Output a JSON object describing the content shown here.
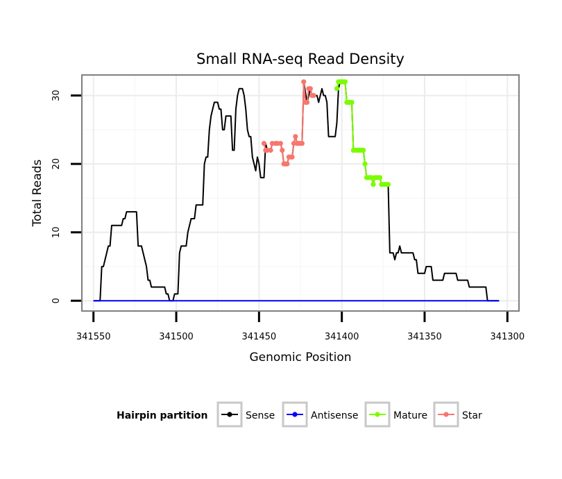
{
  "chart_data": {
    "type": "line",
    "title": "Small RNA-seq Read Density",
    "xlabel": "Genomic Position",
    "ylabel": "Total Reads",
    "xlim": [
      341557,
      341293
    ],
    "ylim": [
      -1.5,
      33
    ],
    "x_ticks": [
      341550,
      341500,
      341450,
      341400,
      341350,
      341300
    ],
    "x_tick_labels": [
      "341550",
      "341500",
      "341450",
      "341400",
      "341350",
      "341300"
    ],
    "y_ticks": [
      0,
      10,
      20,
      30
    ],
    "y_tick_labels": [
      "0",
      "10",
      "20",
      "30"
    ],
    "grid": true,
    "legend": {
      "title": "Hairpin partition",
      "position": "bottom",
      "entries": [
        "Sense",
        "Antisense",
        "Mature",
        "Star"
      ]
    },
    "series": [
      {
        "name": "Sense",
        "color": "#000000",
        "style": "line",
        "points": [
          [
            341550,
            0
          ],
          [
            341546,
            0
          ],
          [
            341545,
            5
          ],
          [
            341544,
            5
          ],
          [
            341543,
            6
          ],
          [
            341542,
            7
          ],
          [
            341541,
            8
          ],
          [
            341540,
            8
          ],
          [
            341539,
            11
          ],
          [
            341534,
            11
          ],
          [
            341533,
            11
          ],
          [
            341532,
            12
          ],
          [
            341531,
            12
          ],
          [
            341530,
            13
          ],
          [
            341524,
            13
          ],
          [
            341523,
            8
          ],
          [
            341521,
            8
          ],
          [
            341520,
            7
          ],
          [
            341519,
            6
          ],
          [
            341518,
            5
          ],
          [
            341517,
            3
          ],
          [
            341516,
            3
          ],
          [
            341515,
            2
          ],
          [
            341507,
            2
          ],
          [
            341506,
            1
          ],
          [
            341505,
            1
          ],
          [
            341504,
            0
          ],
          [
            341502,
            0
          ],
          [
            341501,
            1
          ],
          [
            341499,
            1
          ],
          [
            341498,
            7
          ],
          [
            341497,
            8
          ],
          [
            341494,
            8
          ],
          [
            341493,
            10
          ],
          [
            341492,
            11
          ],
          [
            341491,
            12
          ],
          [
            341489,
            12
          ],
          [
            341488,
            14
          ],
          [
            341484,
            14
          ],
          [
            341483,
            20
          ],
          [
            341482,
            21
          ],
          [
            341481,
            21
          ],
          [
            341480,
            25
          ],
          [
            341479,
            27
          ],
          [
            341478,
            28
          ],
          [
            341477,
            29
          ],
          [
            341475,
            29
          ],
          [
            341474,
            28
          ],
          [
            341473,
            28
          ],
          [
            341472,
            25
          ],
          [
            341471,
            25
          ],
          [
            341470,
            27
          ],
          [
            341467,
            27
          ],
          [
            341466,
            22
          ],
          [
            341465,
            22
          ],
          [
            341464,
            28
          ],
          [
            341463,
            30
          ],
          [
            341462,
            31
          ],
          [
            341460,
            31
          ],
          [
            341459,
            30
          ],
          [
            341458,
            28
          ],
          [
            341457,
            25
          ],
          [
            341456,
            24
          ],
          [
            341455,
            24
          ],
          [
            341454,
            21
          ],
          [
            341453,
            20
          ],
          [
            341452,
            19
          ],
          [
            341451,
            21
          ],
          [
            341450,
            20
          ],
          [
            341449,
            18
          ],
          [
            341447,
            18
          ],
          [
            341446,
            23
          ],
          [
            341445,
            22
          ],
          [
            341443,
            22
          ],
          [
            341442,
            23
          ],
          [
            341437,
            23
          ],
          [
            341436,
            22
          ],
          [
            341435,
            20
          ],
          [
            341433,
            20
          ],
          [
            341432,
            21
          ],
          [
            341430,
            21
          ],
          [
            341429,
            23
          ],
          [
            341428,
            24
          ],
          [
            341427,
            23
          ],
          [
            341424,
            23
          ],
          [
            341423,
            32
          ],
          [
            341421,
            29
          ],
          [
            341420,
            30
          ],
          [
            341419,
            31
          ],
          [
            341418,
            30
          ],
          [
            341415,
            30
          ],
          [
            341414,
            29
          ],
          [
            341413,
            30
          ],
          [
            341412,
            31
          ],
          [
            341411,
            30
          ],
          [
            341410,
            30
          ],
          [
            341409,
            29
          ],
          [
            341408,
            24
          ],
          [
            341404,
            24
          ],
          [
            341403,
            26
          ],
          [
            341402,
            31
          ],
          [
            341401,
            32
          ],
          [
            341398,
            32
          ],
          [
            341397,
            29
          ],
          [
            341394,
            29
          ],
          [
            341393,
            22
          ],
          [
            341387,
            22
          ],
          [
            341386,
            20
          ],
          [
            341385,
            18
          ],
          [
            341382,
            18
          ],
          [
            341381,
            17
          ],
          [
            341380,
            18
          ],
          [
            341377,
            18
          ],
          [
            341376,
            17
          ],
          [
            341372,
            17
          ],
          [
            341371,
            7
          ],
          [
            341369,
            7
          ],
          [
            341368,
            6
          ],
          [
            341367,
            7
          ],
          [
            341366,
            7
          ],
          [
            341365,
            8
          ],
          [
            341364,
            7
          ],
          [
            341357,
            7
          ],
          [
            341356,
            6
          ],
          [
            341355,
            6
          ],
          [
            341354,
            4
          ],
          [
            341350,
            4
          ],
          [
            341349,
            5
          ],
          [
            341346,
            5
          ],
          [
            341345,
            3
          ],
          [
            341339,
            3
          ],
          [
            341338,
            4
          ],
          [
            341331,
            4
          ],
          [
            341330,
            3
          ],
          [
            341324,
            3
          ],
          [
            341323,
            2
          ],
          [
            341313,
            2
          ],
          [
            341312,
            0
          ],
          [
            341305,
            0
          ]
        ]
      },
      {
        "name": "Antisense",
        "color": "#0000ff",
        "style": "line",
        "points": [
          [
            341550,
            0
          ],
          [
            341305,
            0
          ]
        ]
      },
      {
        "name": "Star",
        "color": "#f8766d",
        "style": "line+points",
        "points": [
          [
            341447,
            23
          ],
          [
            341446,
            22
          ],
          [
            341445,
            22
          ],
          [
            341443,
            22
          ],
          [
            341442,
            23
          ],
          [
            341440,
            23
          ],
          [
            341439,
            23
          ],
          [
            341437,
            23
          ],
          [
            341436,
            22
          ],
          [
            341435,
            20
          ],
          [
            341434,
            20
          ],
          [
            341433,
            20
          ],
          [
            341432,
            21
          ],
          [
            341431,
            21
          ],
          [
            341430,
            21
          ],
          [
            341429,
            23
          ],
          [
            341428,
            24
          ],
          [
            341427,
            23
          ],
          [
            341426,
            23
          ],
          [
            341425,
            23
          ],
          [
            341424,
            23
          ],
          [
            341423,
            32
          ],
          [
            341422,
            29
          ],
          [
            341421,
            29
          ],
          [
            341420,
            31
          ],
          [
            341419,
            31
          ],
          [
            341418,
            30
          ],
          [
            341417,
            30
          ]
        ]
      },
      {
        "name": "Mature",
        "color": "#7cfc00",
        "style": "line+points",
        "points": [
          [
            341403,
            31
          ],
          [
            341402,
            32
          ],
          [
            341401,
            32
          ],
          [
            341400,
            32
          ],
          [
            341399,
            32
          ],
          [
            341398,
            32
          ],
          [
            341397,
            29
          ],
          [
            341396,
            29
          ],
          [
            341395,
            29
          ],
          [
            341394,
            29
          ],
          [
            341393,
            22
          ],
          [
            341392,
            22
          ],
          [
            341391,
            22
          ],
          [
            341390,
            22
          ],
          [
            341389,
            22
          ],
          [
            341388,
            22
          ],
          [
            341387,
            22
          ],
          [
            341386,
            20
          ],
          [
            341385,
            18
          ],
          [
            341384,
            18
          ],
          [
            341383,
            18
          ],
          [
            341382,
            18
          ],
          [
            341381,
            17
          ],
          [
            341380,
            18
          ],
          [
            341379,
            18
          ],
          [
            341378,
            18
          ],
          [
            341377,
            18
          ],
          [
            341376,
            17
          ],
          [
            341375,
            17
          ],
          [
            341374,
            17
          ],
          [
            341373,
            17
          ],
          [
            341372,
            17
          ]
        ]
      }
    ]
  }
}
